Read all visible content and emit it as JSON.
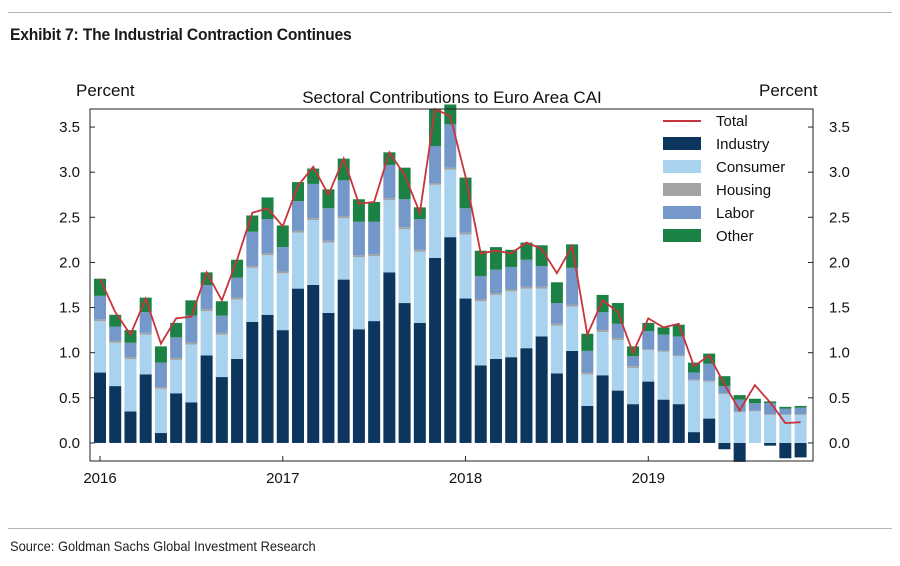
{
  "exhibit_title": "Exhibit 7: The Industrial Contraction Continues",
  "source": "Source: Goldman Sachs Global Investment Research",
  "colors": {
    "industry": "#0c365e",
    "consumer": "#a9d2ee",
    "housing": "#a3a3a3",
    "labor": "#7398c9",
    "other": "#1c8144",
    "total": "#c8343b"
  },
  "chart_data": {
    "type": "bar",
    "stacked": true,
    "title": "Sectoral Contributions to Euro Area CAI",
    "ylabel_left": "Percent",
    "ylabel_right": "Percent",
    "ylim": [
      -0.2,
      3.7
    ],
    "yticks": [
      "0.0",
      "0.5",
      "1.0",
      "1.5",
      "2.0",
      "2.5",
      "3.0",
      "3.5"
    ],
    "xticks": [
      {
        "label": "2016",
        "index": 0
      },
      {
        "label": "2017",
        "index": 12
      },
      {
        "label": "2018",
        "index": 24
      },
      {
        "label": "2019",
        "index": 36
      }
    ],
    "legend_position": "top-right",
    "categories": [
      "2016-01",
      "2016-02",
      "2016-03",
      "2016-04",
      "2016-05",
      "2016-06",
      "2016-07",
      "2016-08",
      "2016-09",
      "2016-10",
      "2016-11",
      "2016-12",
      "2017-01",
      "2017-02",
      "2017-03",
      "2017-04",
      "2017-05",
      "2017-06",
      "2017-07",
      "2017-08",
      "2017-09",
      "2017-10",
      "2017-11",
      "2017-12",
      "2018-01",
      "2018-02",
      "2018-03",
      "2018-04",
      "2018-05",
      "2018-06",
      "2018-07",
      "2018-08",
      "2018-09",
      "2018-10",
      "2018-11",
      "2018-12",
      "2019-01",
      "2019-02",
      "2019-03",
      "2019-04",
      "2019-05",
      "2019-06",
      "2019-07",
      "2019-08",
      "2019-09",
      "2019-10",
      "2019-11"
    ],
    "series": [
      {
        "name": "Industry",
        "key": "industry",
        "values": [
          0.78,
          0.63,
          0.35,
          0.76,
          0.11,
          0.55,
          0.45,
          0.97,
          0.73,
          0.93,
          1.34,
          1.42,
          1.25,
          1.71,
          1.75,
          1.44,
          1.81,
          1.26,
          1.35,
          1.89,
          1.55,
          1.33,
          2.05,
          2.28,
          1.6,
          0.86,
          0.93,
          0.95,
          1.05,
          1.18,
          0.77,
          1.02,
          0.41,
          0.75,
          0.58,
          0.43,
          0.68,
          0.48,
          0.43,
          0.12,
          0.27,
          -0.07,
          -0.21,
          0.0,
          -0.03,
          -0.17,
          -0.16
        ]
      },
      {
        "name": "Consumer",
        "key": "consumer",
        "values": [
          0.57,
          0.48,
          0.58,
          0.44,
          0.49,
          0.37,
          0.64,
          0.49,
          0.47,
          0.66,
          0.6,
          0.66,
          0.63,
          0.62,
          0.72,
          0.78,
          0.68,
          0.8,
          0.72,
          0.8,
          0.82,
          0.79,
          0.81,
          0.75,
          0.71,
          0.71,
          0.71,
          0.73,
          0.66,
          0.53,
          0.53,
          0.49,
          0.35,
          0.48,
          0.56,
          0.4,
          0.35,
          0.53,
          0.53,
          0.57,
          0.41,
          0.54,
          0.34,
          0.35,
          0.31,
          0.31,
          0.31
        ]
      },
      {
        "name": "Housing",
        "key": "housing",
        "values": [
          0.02,
          0.02,
          0.02,
          0.02,
          0.02,
          0.02,
          0.02,
          0.02,
          0.02,
          0.02,
          0.02,
          0.02,
          0.02,
          0.02,
          0.02,
          0.02,
          0.02,
          0.02,
          0.02,
          0.02,
          0.02,
          0.02,
          0.02,
          0.02,
          0.02,
          0.02,
          0.02,
          0.02,
          0.02,
          0.02,
          0.02,
          0.02,
          0.02,
          0.02,
          0.02,
          0.02,
          0.01,
          0.01,
          0.01,
          0.01,
          0.01,
          0.01,
          0.01,
          0.01,
          0.01,
          0.01,
          0.01
        ]
      },
      {
        "name": "Labor",
        "key": "labor",
        "values": [
          0.26,
          0.16,
          0.16,
          0.23,
          0.27,
          0.23,
          0.3,
          0.27,
          0.19,
          0.22,
          0.38,
          0.38,
          0.27,
          0.33,
          0.38,
          0.36,
          0.4,
          0.37,
          0.36,
          0.37,
          0.31,
          0.34,
          0.41,
          0.48,
          0.27,
          0.26,
          0.26,
          0.25,
          0.3,
          0.23,
          0.23,
          0.41,
          0.24,
          0.2,
          0.16,
          0.11,
          0.2,
          0.18,
          0.21,
          0.08,
          0.19,
          0.08,
          0.13,
          0.08,
          0.12,
          0.06,
          0.07
        ]
      },
      {
        "name": "Other",
        "key": "other",
        "values": [
          0.19,
          0.13,
          0.14,
          0.16,
          0.18,
          0.16,
          0.17,
          0.14,
          0.16,
          0.2,
          0.18,
          0.24,
          0.24,
          0.21,
          0.17,
          0.21,
          0.24,
          0.25,
          0.22,
          0.14,
          0.35,
          0.13,
          0.41,
          0.22,
          0.34,
          0.28,
          0.25,
          0.19,
          0.19,
          0.23,
          0.23,
          0.26,
          0.19,
          0.19,
          0.23,
          0.11,
          0.09,
          0.08,
          0.13,
          0.11,
          0.11,
          0.11,
          0.05,
          0.05,
          0.02,
          0.02,
          0.02
        ]
      },
      {
        "name": "Total",
        "key": "total",
        "type": "line",
        "values": [
          1.82,
          1.45,
          1.2,
          1.6,
          1.1,
          1.38,
          1.4,
          1.89,
          1.58,
          2.03,
          2.55,
          2.6,
          2.4,
          2.85,
          3.06,
          2.75,
          3.15,
          2.65,
          2.67,
          3.22,
          2.97,
          2.55,
          3.7,
          3.62,
          2.95,
          2.1,
          2.13,
          2.1,
          2.22,
          2.15,
          1.88,
          2.18,
          1.2,
          1.58,
          1.45,
          1.0,
          1.38,
          1.28,
          1.32,
          0.85,
          0.97,
          0.65,
          0.36,
          0.64,
          0.45,
          0.22,
          0.23
        ]
      }
    ]
  }
}
